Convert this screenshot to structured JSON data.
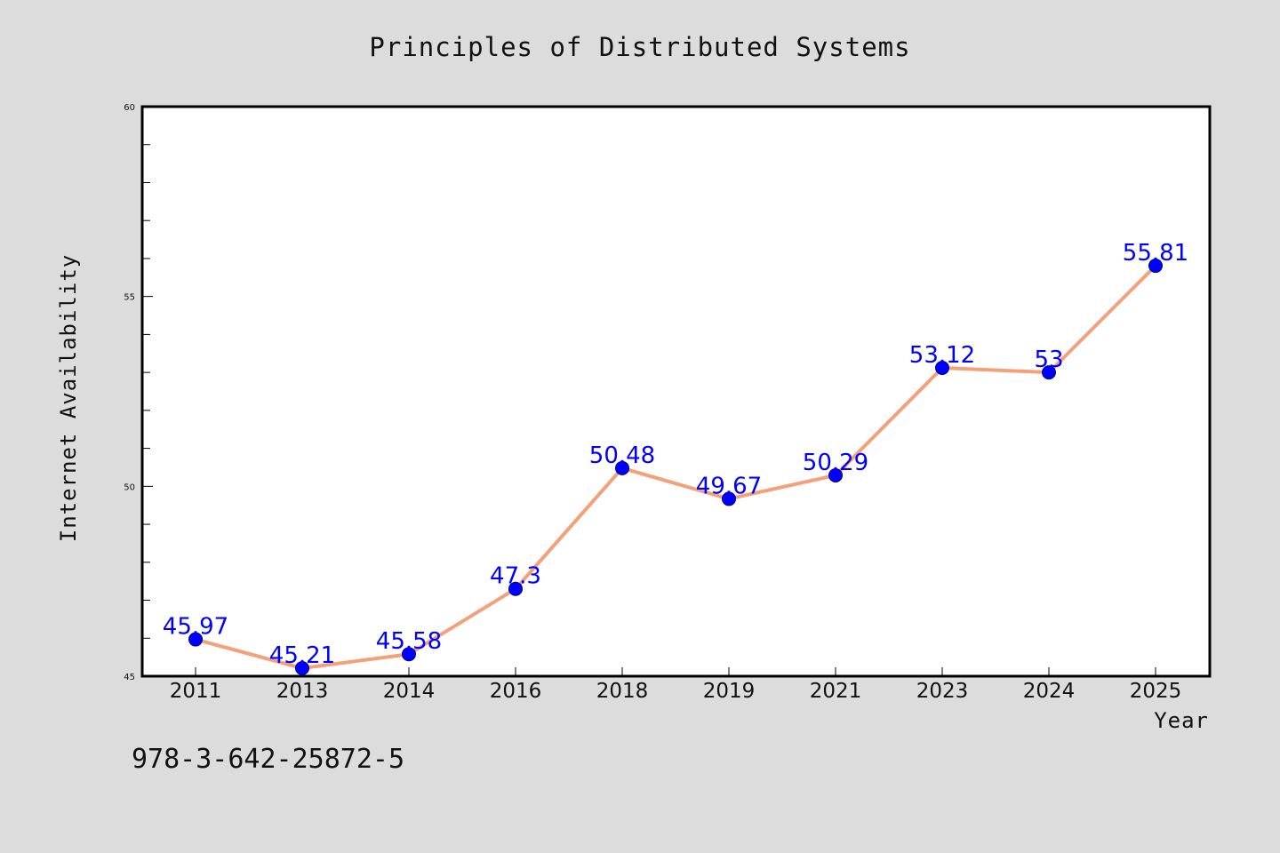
{
  "chart_data": {
    "type": "line",
    "title": "Principles of Distributed Systems",
    "xlabel": "Year",
    "ylabel": "Internet Availability",
    "categories": [
      "2011",
      "2013",
      "2014",
      "2016",
      "2018",
      "2019",
      "2021",
      "2023",
      "2024",
      "2025"
    ],
    "series": [
      {
        "values": [
          45.97,
          45.21,
          45.58,
          47.3,
          50.48,
          49.67,
          50.29,
          53.12,
          53,
          55.81
        ],
        "labels": [
          "45.97",
          "45.21",
          "45.58",
          "47.3",
          "50.48",
          "49.67",
          "50.29",
          "53.12",
          "53",
          "55.81"
        ],
        "line_color": "#f4a07a",
        "marker_color": "#0000ff"
      }
    ],
    "ylim": [
      45,
      60
    ],
    "yticks": [
      "45",
      "50",
      "55",
      "60"
    ],
    "grid": false,
    "legend": "none"
  },
  "footer": {
    "isbn": "978-3-642-25872-5"
  },
  "colors": {
    "background": "#dcdcdc",
    "plot_background": "#ffffff",
    "data_label": "#0000ff"
  }
}
